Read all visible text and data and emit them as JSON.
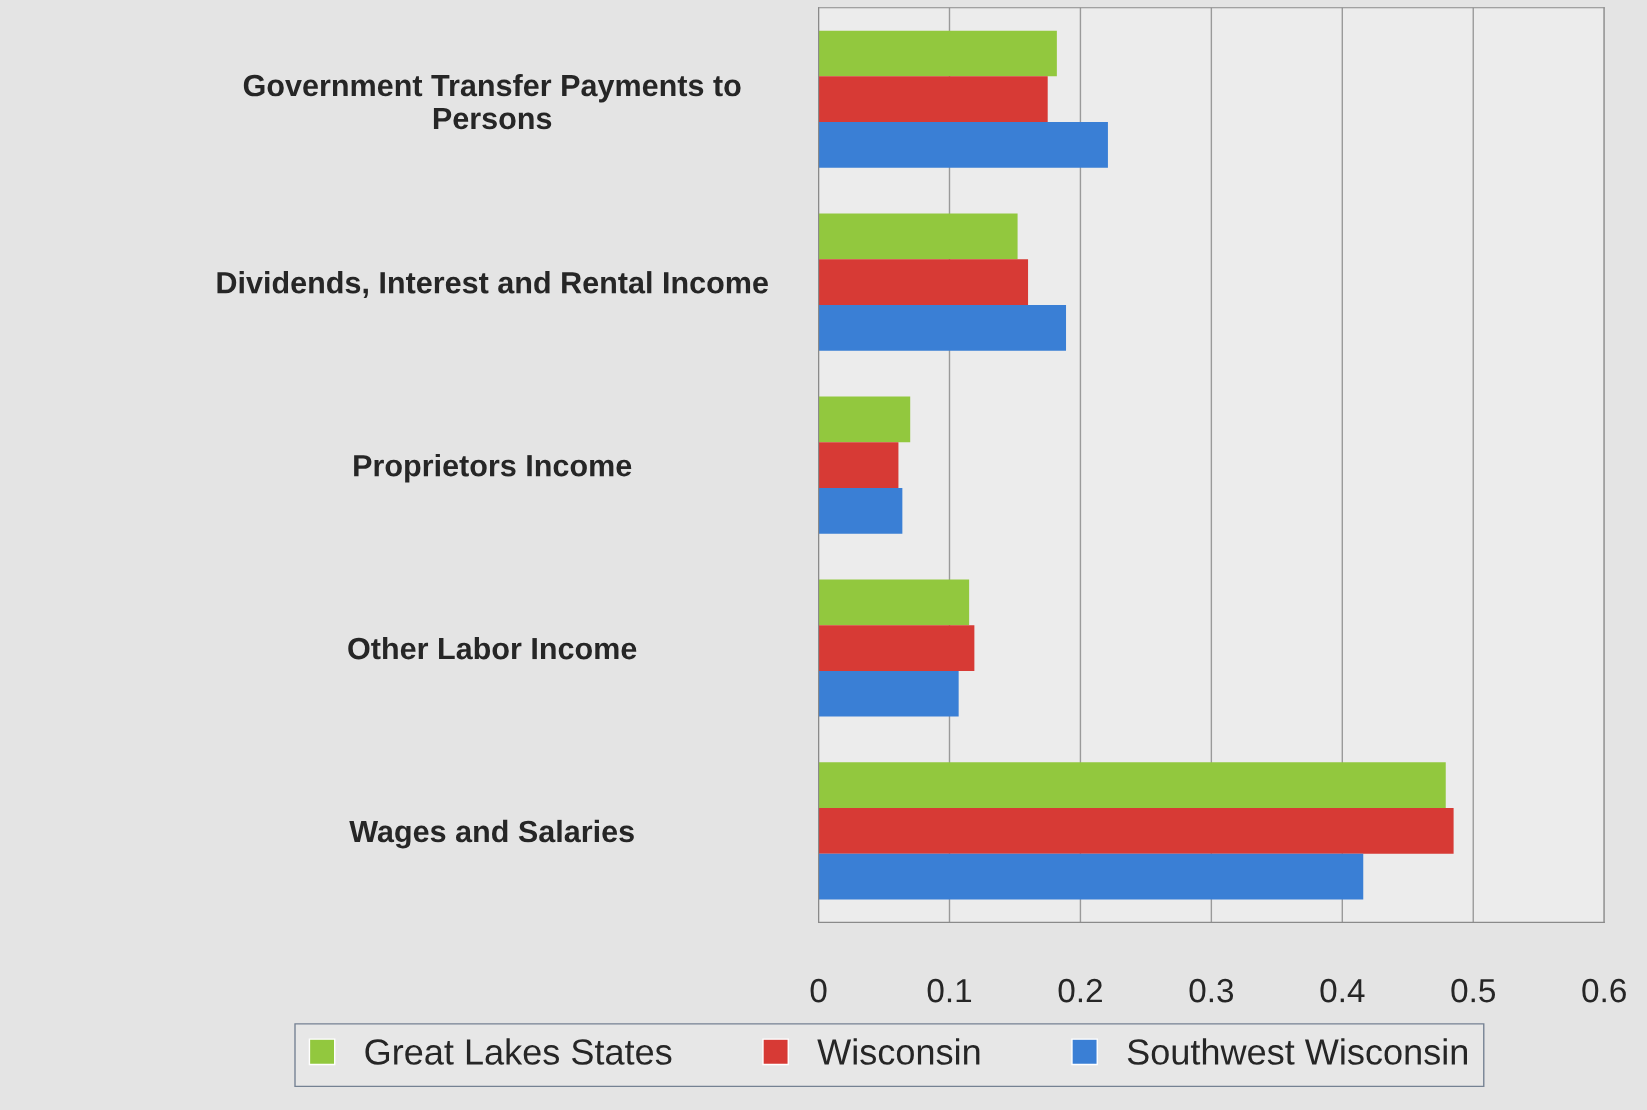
{
  "chart_data": {
    "type": "bar",
    "orientation": "horizontal",
    "categories": [
      "Government Transfer Payments to\nPersons",
      "Dividends, Interest and Rental Income",
      "Proprietors Income",
      "Other Labor Income",
      "Wages and Salaries"
    ],
    "series": [
      {
        "name": "Great Lakes States",
        "color": "#92c83e",
        "values": [
          0.182,
          0.152,
          0.07,
          0.115,
          0.479
        ]
      },
      {
        "name": "Wisconsin",
        "color": "#d73a35",
        "values": [
          0.175,
          0.16,
          0.061,
          0.119,
          0.485
        ]
      },
      {
        "name": "Southwest Wisconsin",
        "color": "#3a7fd5",
        "values": [
          0.221,
          0.189,
          0.064,
          0.107,
          0.416
        ]
      }
    ],
    "xlim": [
      0,
      0.6
    ],
    "xticks": [
      0,
      0.1,
      0.2,
      0.3,
      0.4,
      0.5,
      0.6
    ],
    "grid": "x",
    "legend": "bottom"
  }
}
